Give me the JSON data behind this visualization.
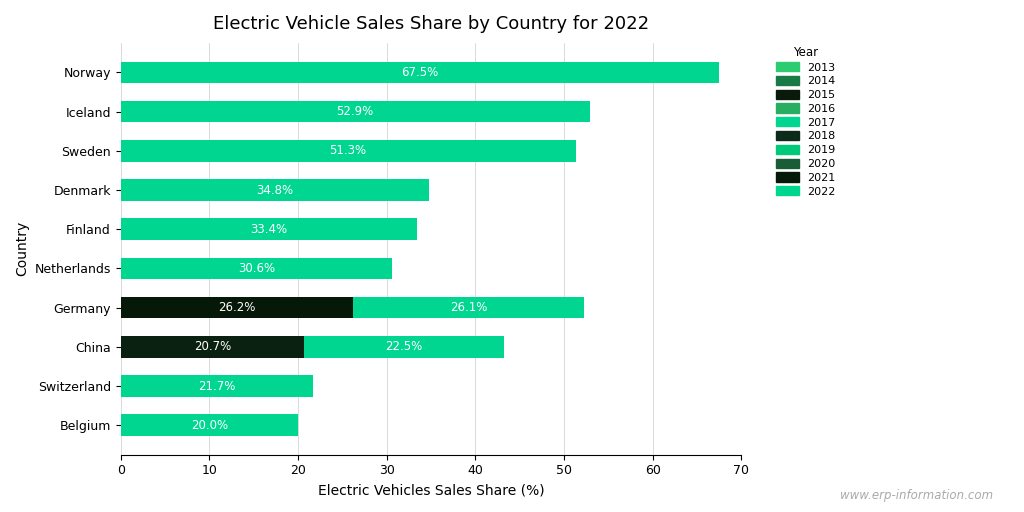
{
  "title": "Electric Vehicle Sales Share by Country for 2022",
  "xlabel": "Electric Vehicles Sales Share (%)",
  "ylabel": "Country",
  "xlim": [
    0,
    70
  ],
  "xticks": [
    0,
    10,
    20,
    30,
    40,
    50,
    60,
    70
  ],
  "countries": [
    "Norway",
    "Iceland",
    "Sweden",
    "Denmark",
    "Finland",
    "Netherlands",
    "Germany",
    "China",
    "Switzerland",
    "Belgium"
  ],
  "segments": [
    {
      "country": "Norway",
      "bars": [
        {
          "value": 67.5,
          "color": "#00d68f",
          "label": "67.5%"
        }
      ]
    },
    {
      "country": "Iceland",
      "bars": [
        {
          "value": 52.9,
          "color": "#00d68f",
          "label": "52.9%"
        }
      ]
    },
    {
      "country": "Sweden",
      "bars": [
        {
          "value": 51.3,
          "color": "#00d68f",
          "label": "51.3%"
        }
      ]
    },
    {
      "country": "Denmark",
      "bars": [
        {
          "value": 34.8,
          "color": "#00d68f",
          "label": "34.8%"
        }
      ]
    },
    {
      "country": "Finland",
      "bars": [
        {
          "value": 33.4,
          "color": "#00d68f",
          "label": "33.4%"
        }
      ]
    },
    {
      "country": "Netherlands",
      "bars": [
        {
          "value": 30.6,
          "color": "#00d68f",
          "label": "30.6%"
        }
      ]
    },
    {
      "country": "Germany",
      "bars": [
        {
          "value": 26.2,
          "color": "#061808",
          "label": "26.2%"
        },
        {
          "value": 26.1,
          "color": "#00d68f",
          "label": "26.1%"
        }
      ]
    },
    {
      "country": "China",
      "bars": [
        {
          "value": 20.7,
          "color": "#0a2010",
          "label": "20.7%"
        },
        {
          "value": 22.5,
          "color": "#00d68f",
          "label": "22.5%"
        }
      ]
    },
    {
      "country": "Switzerland",
      "bars": [
        {
          "value": 21.7,
          "color": "#00d68f",
          "label": "21.7%"
        }
      ]
    },
    {
      "country": "Belgium",
      "bars": [
        {
          "value": 20.0,
          "color": "#00d68f",
          "label": "20.0%"
        }
      ]
    }
  ],
  "legend_years": [
    "2013",
    "2014",
    "2015",
    "2016",
    "2017",
    "2018",
    "2019",
    "2020",
    "2021",
    "2022"
  ],
  "legend_colors": [
    "#2ecc71",
    "#1a7a45",
    "#0a1a0a",
    "#27ae60",
    "#00d68f",
    "#0d2b1a",
    "#00c97a",
    "#1a5c35",
    "#061808",
    "#00d68f"
  ],
  "background_color": "#ffffff",
  "grid_color": "#cccccc",
  "bar_height": 0.55,
  "title_fontsize": 13,
  "axis_label_fontsize": 10,
  "tick_fontsize": 9,
  "bar_label_fontsize": 8.5,
  "watermark": "www.erp-information.com"
}
